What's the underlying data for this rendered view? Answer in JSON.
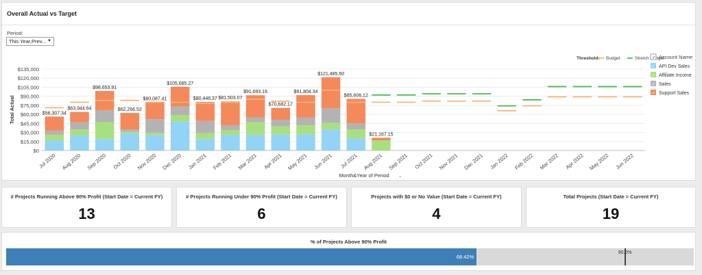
{
  "chart_panel": {
    "title": "Overall Actual vs Target",
    "period_label": "Period:",
    "period_value": "This Year,Prev..."
  },
  "chart_data": {
    "type": "bar",
    "stacked": true,
    "xlabel": "Month&Year of Period",
    "ylabel": "Total Actual",
    "ylim": [
      0,
      135000
    ],
    "yticks": [
      "$0",
      "$15,000",
      "$30,000",
      "$45,000",
      "$60,000",
      "$75,000",
      "$90,000",
      "$105,000",
      "$120,000",
      "$135,000"
    ],
    "grid": true,
    "categories": [
      "Jul 2020",
      "Aug 2020",
      "Sep 2020",
      "Oct 2020",
      "Nov 2020",
      "Dec 2020",
      "Jan 2021",
      "Feb 2021",
      "Mar 2021",
      "Apr 2021",
      "May 2021",
      "Jun 2021",
      "Jul 2021",
      "Aug 2021",
      "Sep 2021",
      "Oct 2021",
      "Nov 2021",
      "Dec 2021",
      "Jan 2022",
      "Feb 2022",
      "Mar 2022",
      "Apr 2022",
      "May 2022",
      "Jun 2022"
    ],
    "series": [
      {
        "name": "API Dev Sales",
        "color": "#93d3f5",
        "values": [
          17000,
          25000,
          19000,
          28000,
          25000,
          48000,
          19000,
          26000,
          26000,
          27000,
          27000,
          35000,
          20000,
          0,
          null,
          null,
          null,
          null,
          null,
          null,
          null,
          null,
          null,
          null
        ]
      },
      {
        "name": "Affiliate Income",
        "color": "#a9e07f",
        "values": [
          9000,
          10000,
          28000,
          3000,
          4000,
          11000,
          10000,
          8000,
          21000,
          13000,
          15000,
          11000,
          15000,
          17000,
          null,
          null,
          null,
          null,
          null,
          null,
          null,
          null,
          null,
          null
        ]
      },
      {
        "name": "Sales",
        "color": "#b3b3b3",
        "values": [
          7000,
          12000,
          20000,
          4000,
          23000,
          14000,
          20000,
          8000,
          8000,
          11000,
          13000,
          24000,
          10000,
          0,
          null,
          null,
          null,
          null,
          null,
          null,
          null,
          null,
          null,
          null
        ]
      },
      {
        "name": "Support Sales",
        "color": "#f4895b",
        "values": [
          23307,
          16945,
          31654,
          27267,
          28087,
          32685,
          31446,
          39503,
          36693,
          19682,
          36804,
          51486,
          40606,
          4167,
          null,
          null,
          null,
          null,
          null,
          null,
          null,
          null,
          null,
          null
        ]
      }
    ],
    "totals_labels": [
      "$56,307.34",
      "$63,944.64",
      "$98,653.91",
      "$62,266.52",
      "$80,087.41",
      "$105,685.27",
      "$80,446.37",
      "$81,503.07",
      "$91,693.16",
      "$70,682.17",
      "$91,804.34",
      "$121,485.50",
      "$85,606.12",
      "$21,167.15",
      "",
      "",
      "",
      "",
      "",
      "",
      "",
      "",
      "",
      ""
    ],
    "threshold_title": "Threshold:",
    "thresholds": [
      {
        "name": "Budget",
        "color": "#f6b47a",
        "values": [
          71000,
          80000,
          83000,
          83000,
          80000,
          80000,
          78000,
          80000,
          85000,
          82000,
          80000,
          100000,
          80000,
          80000,
          80000,
          82000,
          82000,
          82000,
          66000,
          74000,
          89000,
          89000,
          89000,
          89000
        ]
      },
      {
        "name": "Stretch Budget",
        "color": "#4cba55",
        "values": [
          null,
          null,
          null,
          null,
          null,
          null,
          null,
          null,
          null,
          null,
          null,
          null,
          null,
          92000,
          92000,
          94000,
          94000,
          94000,
          74000,
          84000,
          106000,
          106000,
          106000,
          106000
        ]
      }
    ],
    "legend_title": "Account Name",
    "legend_position": "right"
  },
  "kpis": [
    {
      "title": "# Projects Running Above 90% Profit (Start Date = Current FY)",
      "value": "13"
    },
    {
      "title": "# Projects Running Under 90% Profit (Start Date = Current FY)",
      "value": "6"
    },
    {
      "title": "Projects with $0 or No Value (Start Date = Current FY)",
      "value": "4"
    },
    {
      "title": "Total Projects (Start Date = Current FY)",
      "value": "19"
    }
  ],
  "progress": {
    "title": "% of Projects Above 90% Profit",
    "value": 68.42,
    "value_label": "68.42%",
    "target": 90,
    "target_label": "90.0%"
  },
  "colors": {
    "progress_fill": "#3f7fb8",
    "progress_track": "#d9d9d9"
  }
}
